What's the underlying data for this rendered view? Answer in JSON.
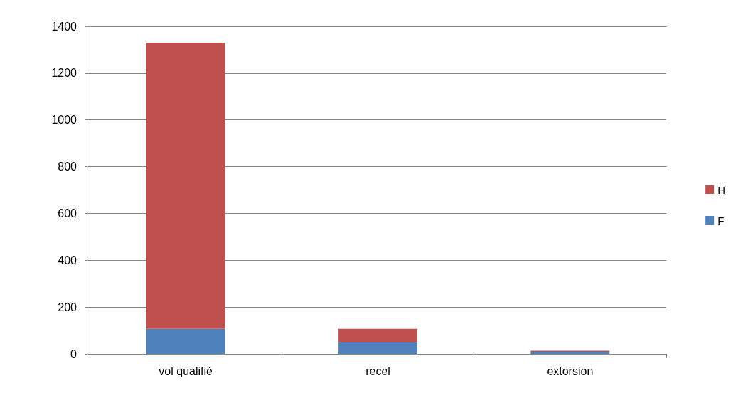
{
  "chart_data": {
    "type": "bar",
    "stacked": true,
    "categories": [
      "vol qualifié",
      "recel",
      "extorsion"
    ],
    "series": [
      {
        "name": "F",
        "color": "#4f81bd",
        "values": [
          107,
          49,
          9
        ]
      },
      {
        "name": "H",
        "color": "#c0504d",
        "values": [
          1223,
          58,
          5
        ]
      }
    ],
    "ylim": [
      0,
      1400
    ],
    "yticks": [
      0,
      200,
      400,
      600,
      800,
      1000,
      1200,
      1400
    ],
    "grid": "y",
    "legend": "right"
  }
}
